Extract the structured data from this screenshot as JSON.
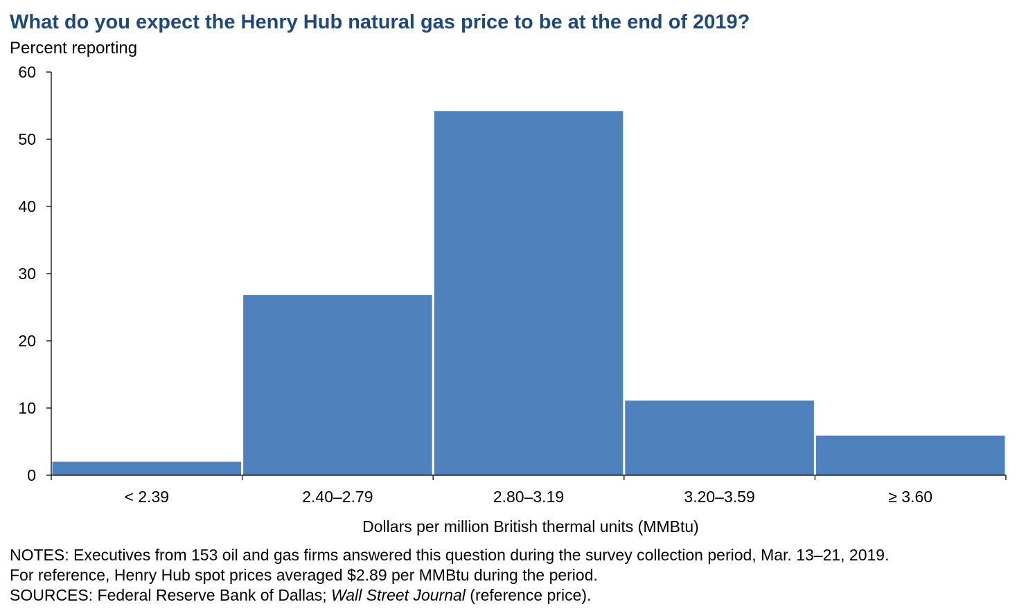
{
  "title": "What do you expect the Henry Hub natural gas price to be at the end of 2019?",
  "subtitle": "Percent reporting",
  "colors": {
    "title": "#1f497d",
    "bar": "#4f81bd",
    "axis": "#000000"
  },
  "chart_data": {
    "type": "bar",
    "categories": [
      "< 2.39",
      "2.40–2.79",
      "2.80–3.19",
      "3.20–3.59",
      "≥ 3.60"
    ],
    "series": [
      {
        "values": [
          2.0,
          26.8,
          54.2,
          11.1,
          5.9
        ]
      }
    ],
    "xlabel": "Dollars per million British thermal units (MMBtu)",
    "ylabel": "Percent reporting",
    "ylim": [
      0,
      60
    ],
    "yticks": [
      0,
      10,
      20,
      30,
      40,
      50,
      60
    ],
    "grid": false,
    "legend": "none"
  },
  "notes": {
    "line1": "NOTES: Executives from 153 oil and gas firms answered this question during the survey collection period, Mar. 13–21, 2019.",
    "line2": "For reference, Henry Hub spot prices averaged $2.89 per MMBtu during the period.",
    "sources_prefix": "SOURCES: Federal Reserve Bank of Dallas; ",
    "sources_italic": "Wall Street Journal",
    "sources_suffix": " (reference price)."
  }
}
